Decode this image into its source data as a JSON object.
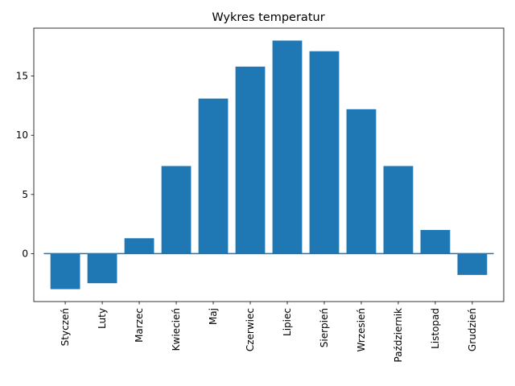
{
  "chart_data": {
    "type": "bar",
    "title": "Wykres temperatur",
    "xlabel": "",
    "ylabel": "",
    "categories": [
      "Styczeń",
      "Luty",
      "Marzec",
      "Kwiecień",
      "Maj",
      "Czerwiec",
      "Lipiec",
      "Sierpień",
      "Wrzesień",
      "Październik",
      "Listopad",
      "Grudzień"
    ],
    "values": [
      -3.0,
      -2.5,
      1.3,
      7.4,
      13.1,
      15.8,
      18.0,
      17.1,
      12.2,
      7.4,
      2.0,
      -1.8
    ],
    "yticks": [
      0,
      5,
      10,
      15
    ],
    "ylim": [
      -4.05,
      19.05
    ],
    "bar_color": "#1f77b4",
    "baseline": 0,
    "grid": false,
    "legend": false
  }
}
